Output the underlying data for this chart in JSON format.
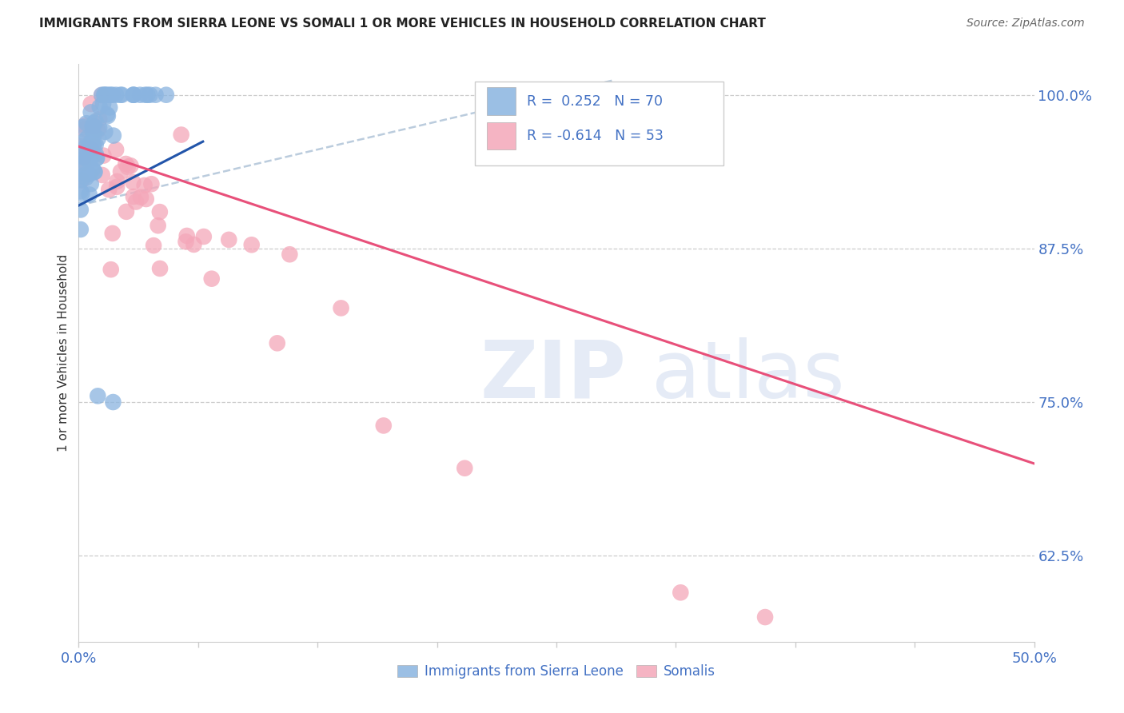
{
  "title": "IMMIGRANTS FROM SIERRA LEONE VS SOMALI 1 OR MORE VEHICLES IN HOUSEHOLD CORRELATION CHART",
  "source": "Source: ZipAtlas.com",
  "ylabel": "1 or more Vehicles in Household",
  "xmin": 0.0,
  "xmax": 0.5,
  "ymin": 0.555,
  "ymax": 1.025,
  "yticks": [
    1.0,
    0.875,
    0.75,
    0.625
  ],
  "ytick_labels": [
    "100.0%",
    "87.5%",
    "75.0%",
    "62.5%"
  ],
  "sierra_leone_color": "#8ab4e0",
  "somali_color": "#f4a7b9",
  "sierra_leone_line_color": "#2255aa",
  "somali_line_color": "#e8507a",
  "dashed_line_color": "#b0c4d8",
  "axis_color": "#4472c4",
  "grid_color": "#cccccc",
  "background_color": "#ffffff",
  "legend_r1_text": "R =  0.252",
  "legend_n1_text": "N = 70",
  "legend_r2_text": "R = -0.614",
  "legend_n2_text": "N = 53",
  "bottom_legend_sl": "Immigrants from Sierra Leone",
  "bottom_legend_so": "Somalis",
  "sl_trend_x0": 0.0,
  "sl_trend_x1": 0.065,
  "sl_trend_y0": 0.91,
  "sl_trend_y1": 0.962,
  "dash_trend_x0": 0.0,
  "dash_trend_x1": 0.28,
  "dash_trend_y0": 0.91,
  "dash_trend_y1": 1.012,
  "so_trend_x0": 0.0,
  "so_trend_x1": 0.5,
  "so_trend_y0": 0.958,
  "so_trend_y1": 0.7
}
